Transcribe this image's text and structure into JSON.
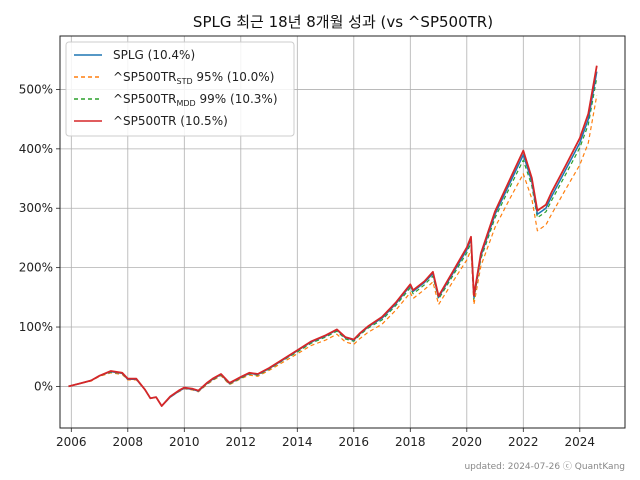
{
  "chart_data": {
    "type": "line",
    "title": "SPLG 최근 18년 8개월 성과 (vs ^SP500TR)",
    "xlabel": "",
    "ylabel": "",
    "xlim": [
      2005.6,
      2025.6
    ],
    "ylim": [
      -70,
      590
    ],
    "x_ticks": [
      2006,
      2008,
      2010,
      2012,
      2014,
      2016,
      2018,
      2020,
      2022,
      2024
    ],
    "x_tick_labels": [
      "2006",
      "2008",
      "2010",
      "2012",
      "2014",
      "2016",
      "2018",
      "2020",
      "2022",
      "2024"
    ],
    "y_ticks": [
      0,
      100,
      200,
      300,
      400,
      500
    ],
    "y_tick_labels": [
      "0%",
      "100%",
      "200%",
      "300%",
      "400%",
      "500%"
    ],
    "grid": true,
    "legend_position": "top-left",
    "legend": [
      {
        "label": "SPLG (10.4%)",
        "main": "SPLG (10.4%)",
        "sub": "",
        "rest": "",
        "color": "#1f77b4",
        "dash": "none"
      },
      {
        "label": "^SP500TRSTD 95% (10.0%)",
        "main": "^SP500TR",
        "sub": "STD",
        "rest": " 95% (10.0%)",
        "color": "#ff7f0e",
        "dash": "4,3"
      },
      {
        "label": "^SP500TRMDD 99% (10.3%)",
        "main": "^SP500TR",
        "sub": "MDD",
        "rest": " 99% (10.3%)",
        "color": "#2ca02c",
        "dash": "4,3"
      },
      {
        "label": "^SP500TR (10.5%)",
        "main": "^SP500TR (10.5%)",
        "sub": "",
        "rest": "",
        "color": "#d62728",
        "dash": "none"
      }
    ],
    "x": [
      2005.9,
      2006.3,
      2006.7,
      2007.0,
      2007.4,
      2007.8,
      2008.0,
      2008.3,
      2008.6,
      2008.8,
      2009.0,
      2009.2,
      2009.5,
      2009.8,
      2010.0,
      2010.3,
      2010.5,
      2010.8,
      2011.0,
      2011.3,
      2011.6,
      2011.8,
      2012.0,
      2012.3,
      2012.6,
      2012.8,
      2013.0,
      2013.5,
      2014.0,
      2014.5,
      2015.0,
      2015.4,
      2015.7,
      2016.0,
      2016.2,
      2016.5,
      2017.0,
      2017.5,
      2018.0,
      2018.1,
      2018.5,
      2018.8,
      2019.0,
      2019.5,
      2020.0,
      2020.15,
      2020.25,
      2020.5,
      2021.0,
      2021.5,
      2022.0,
      2022.3,
      2022.5,
      2022.8,
      2023.0,
      2023.5,
      2024.0,
      2024.3,
      2024.6
    ],
    "series": [
      {
        "name": "SPLG (10.4%)",
        "color": "#1f77b4",
        "dash": "none",
        "width": 1.5,
        "values": [
          0,
          5,
          10,
          18,
          25,
          22,
          12,
          12,
          -5,
          -20,
          -18,
          -33,
          -18,
          -8,
          -3,
          -5,
          -8,
          5,
          12,
          20,
          5,
          10,
          15,
          22,
          20,
          25,
          30,
          45,
          60,
          75,
          85,
          95,
          82,
          78,
          88,
          100,
          115,
          140,
          170,
          160,
          175,
          190,
          150,
          190,
          230,
          248,
          150,
          220,
          290,
          340,
          390,
          345,
          290,
          300,
          320,
          365,
          410,
          450,
          530
        ]
      },
      {
        "name": "^SP500TRSTD 95% (10.0%)",
        "color": "#ff7f0e",
        "dash": "4,3",
        "width": 1.2,
        "values": [
          0,
          5,
          9,
          17,
          23,
          20,
          11,
          11,
          -5,
          -20,
          -18,
          -33,
          -18,
          -9,
          -4,
          -6,
          -9,
          3,
          10,
          18,
          3,
          8,
          13,
          19,
          17,
          22,
          27,
          41,
          55,
          69,
          78,
          88,
          75,
          71,
          80,
          91,
          105,
          129,
          158,
          148,
          163,
          176,
          138,
          176,
          213,
          230,
          138,
          203,
          268,
          314,
          358,
          316,
          262,
          272,
          290,
          332,
          373,
          410,
          490
        ]
      },
      {
        "name": "^SP500TRMDD 99% (10.3%)",
        "color": "#2ca02c",
        "dash": "4,3",
        "width": 1.2,
        "values": [
          0,
          5,
          10,
          18,
          24,
          22,
          12,
          12,
          -5,
          -20,
          -18,
          -33,
          -18,
          -8,
          -3,
          -5,
          -8,
          4,
          11,
          19,
          4,
          9,
          14,
          21,
          19,
          24,
          29,
          44,
          58,
          73,
          83,
          93,
          80,
          76,
          86,
          98,
          112,
          137,
          166,
          156,
          171,
          186,
          147,
          186,
          225,
          242,
          147,
          215,
          284,
          333,
          381,
          338,
          284,
          294,
          313,
          357,
          402,
          441,
          520
        ]
      },
      {
        "name": "^SP500TR (10.5%)",
        "color": "#d62728",
        "dash": "none",
        "width": 1.8,
        "values": [
          0,
          5,
          10,
          18,
          26,
          23,
          13,
          13,
          -5,
          -20,
          -18,
          -33,
          -17,
          -7,
          -2,
          -4,
          -7,
          6,
          13,
          21,
          6,
          11,
          16,
          23,
          21,
          26,
          31,
          46,
          61,
          76,
          86,
          96,
          83,
          79,
          89,
          101,
          117,
          142,
          172,
          162,
          177,
          193,
          152,
          193,
          234,
          252,
          153,
          224,
          295,
          346,
          397,
          351,
          296,
          306,
          327,
          372,
          418,
          459,
          540
        ]
      }
    ]
  },
  "footer": "updated: 2024-07-26 ⓒ QuantKang"
}
